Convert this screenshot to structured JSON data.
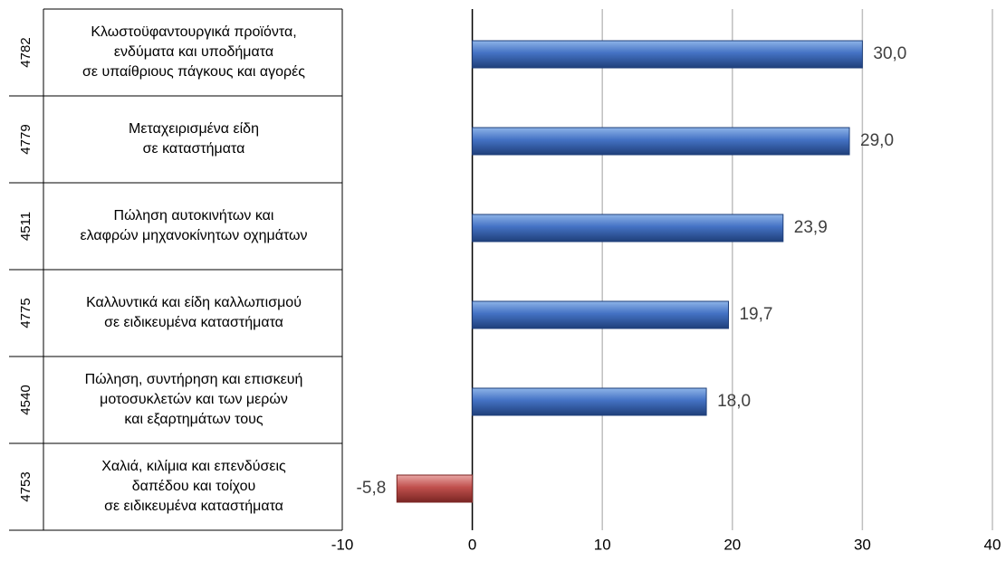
{
  "chart_data": {
    "type": "bar",
    "orientation": "horizontal",
    "categories": [
      {
        "code": "4782",
        "label_lines": [
          "Κλωστοϋφαντουργικά προϊόντα,",
          "ενδύματα και υποδήματα",
          "σε υπαίθριους πάγκους και αγορές"
        ]
      },
      {
        "code": "4779",
        "label_lines": [
          "Μεταχειρισμένα είδη",
          "σε καταστήματα"
        ]
      },
      {
        "code": "4511",
        "label_lines": [
          "Πώληση αυτοκινήτων και",
          "ελαφρών μηχανοκίνητων οχημάτων"
        ]
      },
      {
        "code": "4775",
        "label_lines": [
          "Καλλυντικά και είδη καλλωπισμού",
          "σε ειδικευμένα καταστήματα"
        ]
      },
      {
        "code": "4540",
        "label_lines": [
          "Πώληση, συντήρηση και επισκευή",
          "μοτοσυκλετών και των μερών",
          "και εξαρτημάτων τους"
        ]
      },
      {
        "code": "4753",
        "label_lines": [
          "Χαλιά, κιλίμια και επενδύσεις",
          "δαπέδου και τοίχου",
          "σε ειδικευμένα καταστήματα"
        ]
      }
    ],
    "values": [
      30.0,
      29.0,
      23.9,
      19.7,
      18.0,
      -5.8
    ],
    "value_labels": [
      "30,0",
      "29,0",
      "23,9",
      "19,7",
      "18,0",
      "-5,8"
    ],
    "xlim": [
      -10,
      40
    ],
    "ticks": [
      -10,
      0,
      10,
      20,
      30,
      40
    ],
    "tick_labels": [
      "-10",
      "0",
      "10",
      "20",
      "30",
      "40"
    ],
    "gridlines": true,
    "colors": {
      "positive": "#4472C4",
      "positive_dark": "#1F3F7A",
      "positive_light": "#8EB4E8",
      "negative": "#C0504D",
      "negative_dark": "#7A2523",
      "negative_light": "#E8A6A4",
      "grid": "#BFBFBF",
      "text": "#404040",
      "axis": "#000000"
    }
  }
}
